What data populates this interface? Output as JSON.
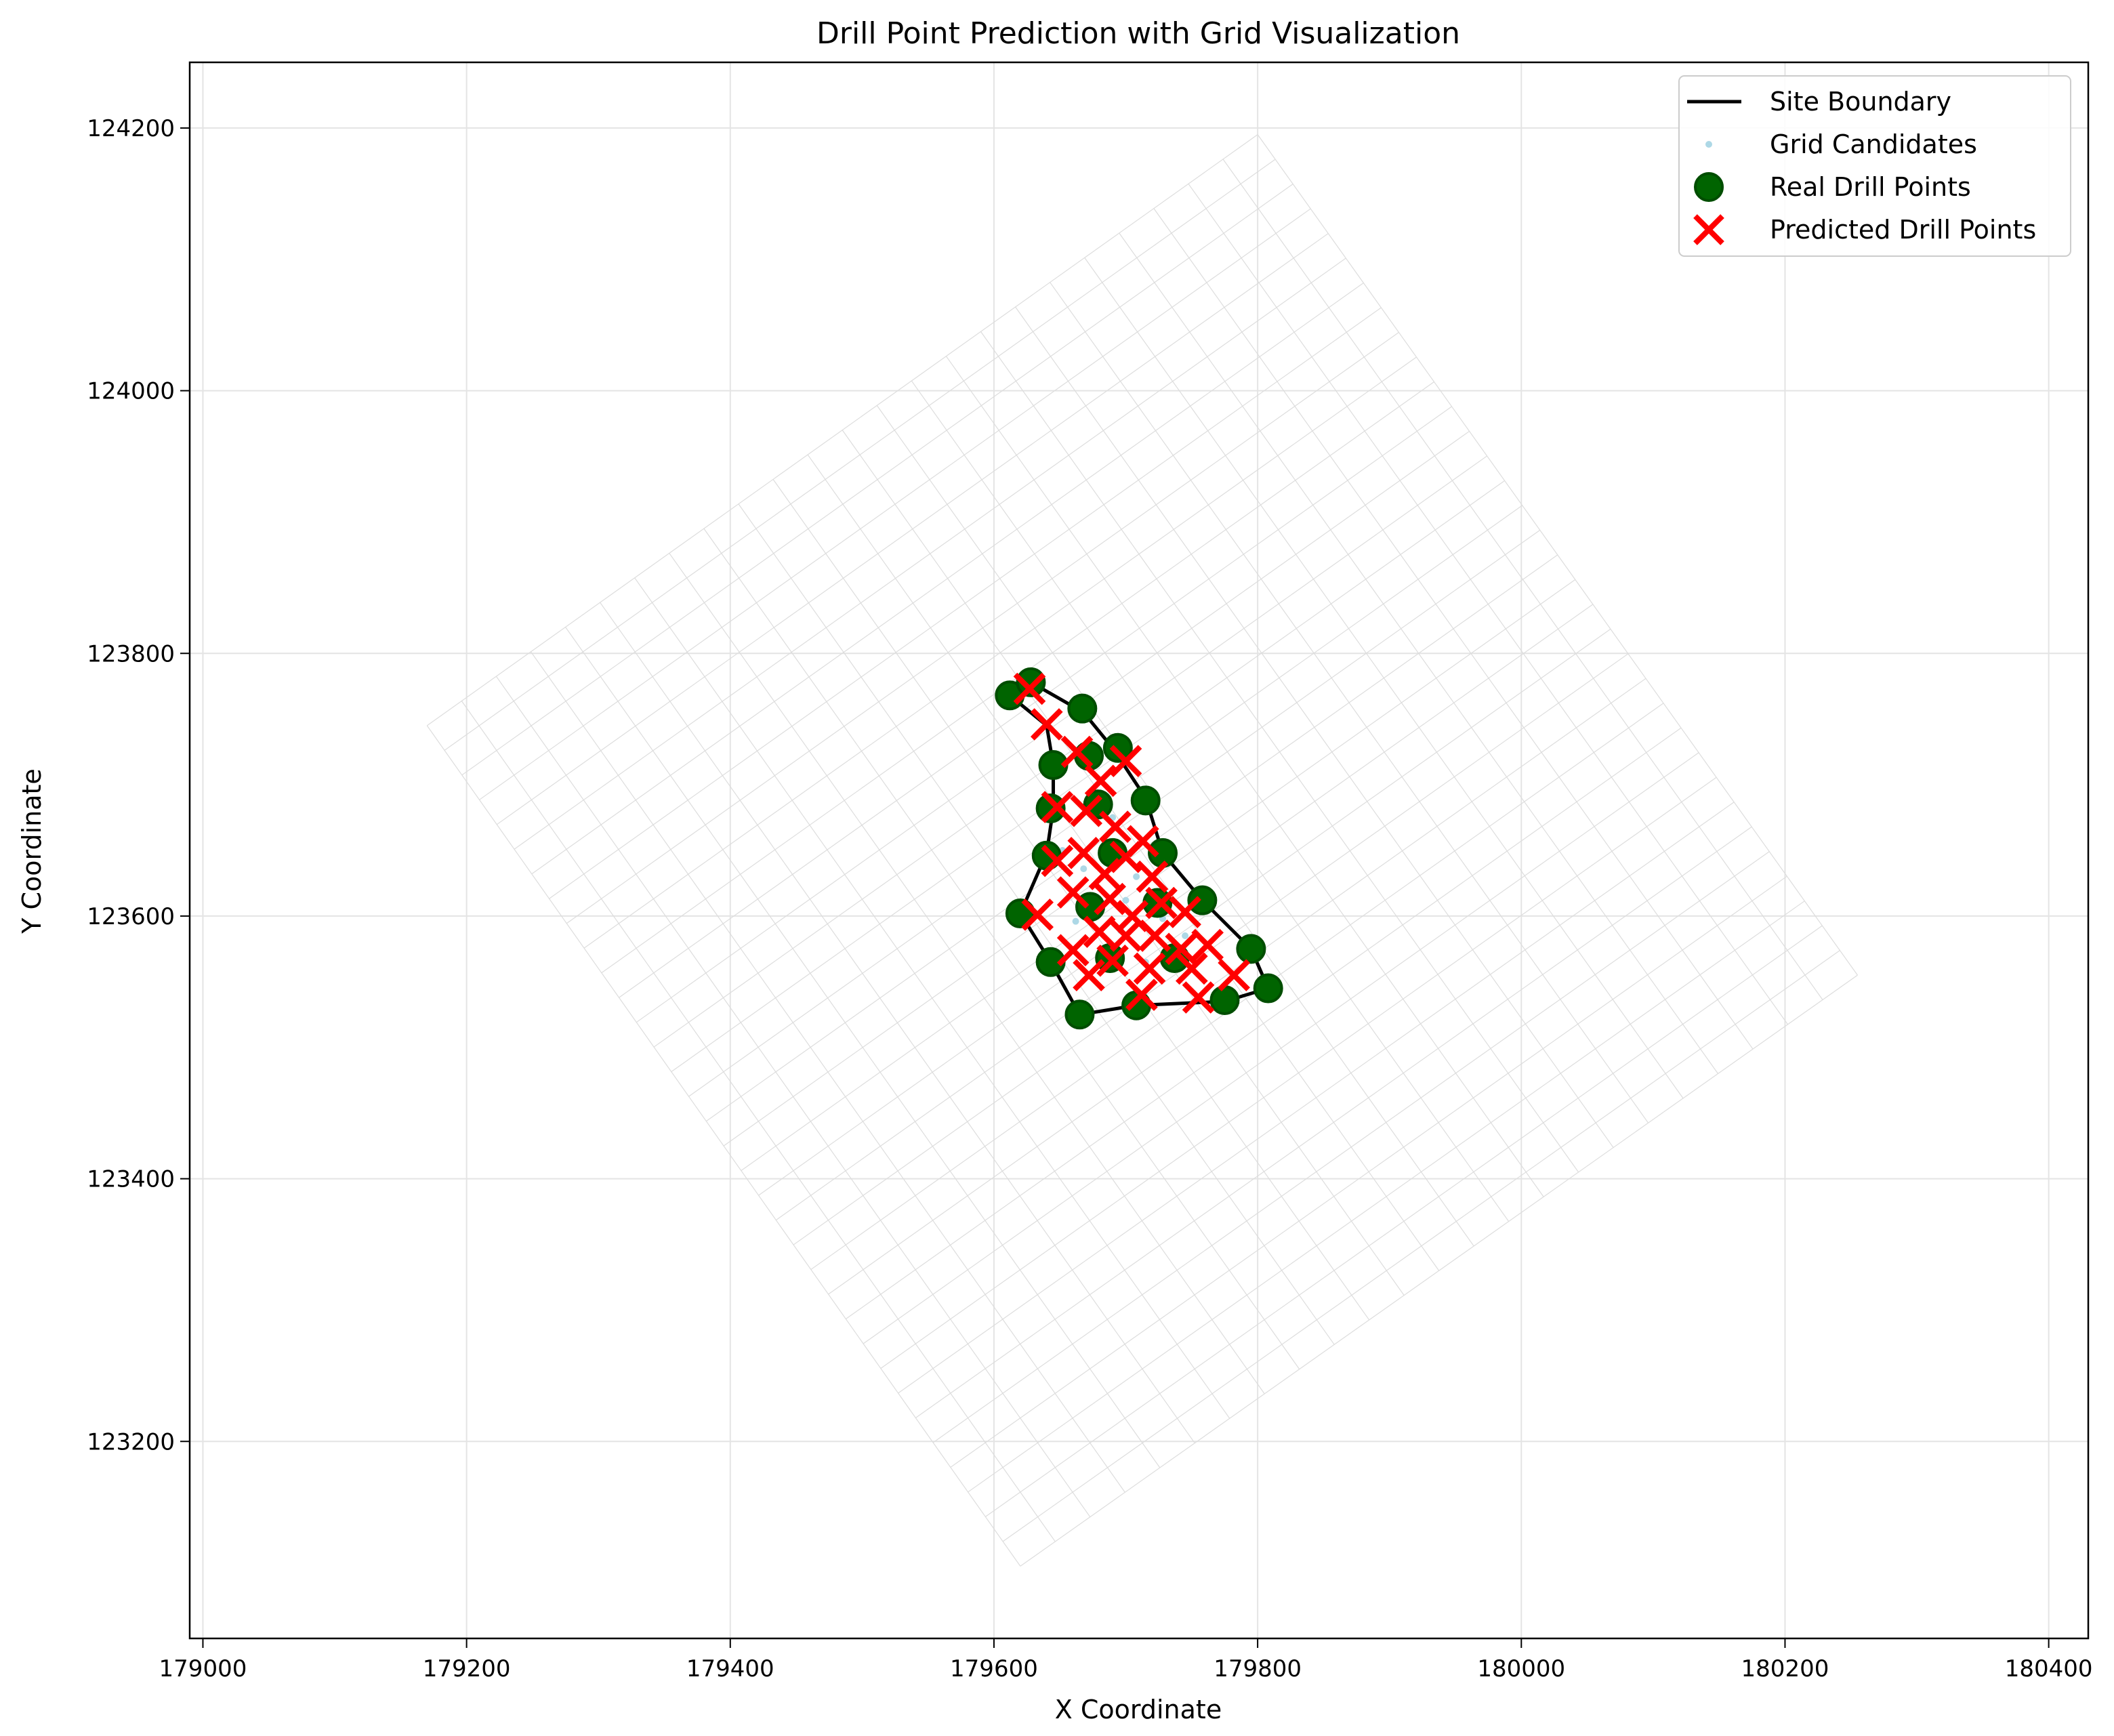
{
  "chart_data": {
    "type": "scatter",
    "title": "Drill Point Prediction with Grid Visualization",
    "xlabel": "X Coordinate",
    "ylabel": "Y Coordinate",
    "xlim": [
      178990,
      180430
    ],
    "ylim": [
      123050,
      124250
    ],
    "xticks": [
      179000,
      179200,
      179400,
      179600,
      179800,
      180000,
      180200,
      180400
    ],
    "yticks": [
      123200,
      123400,
      123600,
      123800,
      124000,
      124200
    ],
    "grid": true,
    "legend_position": "top-right",
    "legend": [
      {
        "label": "Site Boundary",
        "marker": "line",
        "color": "#000000"
      },
      {
        "label": "Grid Candidates",
        "marker": "small-dot",
        "color": "#add8e6"
      },
      {
        "label": "Real Drill Points",
        "marker": "circle",
        "color": "#006400"
      },
      {
        "label": "Predicted Drill Points",
        "marker": "x",
        "color": "#ff0000"
      }
    ],
    "background_grid": {
      "corners": [
        [
          179170,
          123745
        ],
        [
          179800,
          124195
        ],
        [
          180255,
          123555
        ],
        [
          179620,
          123105
        ]
      ],
      "divisions_u": 34,
      "divisions_v": 24,
      "color": "#dddddd"
    },
    "site_boundary": [
      [
        179628,
        123778
      ],
      [
        179668,
        123755
      ],
      [
        179690,
        123728
      ],
      [
        179715,
        123690
      ],
      [
        179728,
        123648
      ],
      [
        179758,
        123612
      ],
      [
        179795,
        123575
      ],
      [
        179808,
        123545
      ],
      [
        179775,
        123535
      ],
      [
        179708,
        123532
      ],
      [
        179665,
        123525
      ],
      [
        179643,
        123565
      ],
      [
        179620,
        123602
      ],
      [
        179640,
        123648
      ],
      [
        179645,
        123682
      ],
      [
        179645,
        123715
      ],
      [
        179640,
        123745
      ],
      [
        179612,
        123768
      ],
      [
        179628,
        123778
      ]
    ],
    "series": [
      {
        "name": "Grid Candidates",
        "points": [
          [
            179662,
            123596
          ],
          [
            179696,
            123589
          ],
          [
            179715,
            123565
          ],
          [
            179708,
            123630
          ],
          [
            179668,
            123636
          ],
          [
            179690,
            123675
          ],
          [
            179728,
            123598
          ],
          [
            179680,
            123563
          ],
          [
            179745,
            123585
          ],
          [
            179652,
            123650
          ],
          [
            179700,
            123612
          ]
        ]
      },
      {
        "name": "Real Drill Points",
        "points": [
          [
            179612,
            123768
          ],
          [
            179628,
            123778
          ],
          [
            179667,
            123758
          ],
          [
            179694,
            123728
          ],
          [
            179672,
            123722
          ],
          [
            179645,
            123715
          ],
          [
            179715,
            123688
          ],
          [
            179679,
            123685
          ],
          [
            179643,
            123682
          ],
          [
            179728,
            123648
          ],
          [
            179690,
            123648
          ],
          [
            179640,
            123646
          ],
          [
            179758,
            123612
          ],
          [
            179724,
            123610
          ],
          [
            179673,
            123607
          ],
          [
            179620,
            123602
          ],
          [
            179795,
            123575
          ],
          [
            179737,
            123568
          ],
          [
            179688,
            123568
          ],
          [
            179643,
            123565
          ],
          [
            179808,
            123545
          ],
          [
            179775,
            123536
          ],
          [
            179708,
            123532
          ],
          [
            179665,
            123525
          ]
        ]
      },
      {
        "name": "Predicted Drill Points",
        "points": [
          [
            179627,
            123773
          ],
          [
            179640,
            123746
          ],
          [
            179663,
            123725
          ],
          [
            179681,
            123703
          ],
          [
            179700,
            123718
          ],
          [
            179648,
            123683
          ],
          [
            179670,
            123680
          ],
          [
            179692,
            123668
          ],
          [
            179713,
            123657
          ],
          [
            179648,
            123642
          ],
          [
            179668,
            123648
          ],
          [
            179684,
            123632
          ],
          [
            179700,
            123645
          ],
          [
            179720,
            123630
          ],
          [
            179633,
            123601
          ],
          [
            179660,
            123618
          ],
          [
            179688,
            123613
          ],
          [
            179705,
            123600
          ],
          [
            179727,
            123610
          ],
          [
            179745,
            123603
          ],
          [
            179660,
            123574
          ],
          [
            179680,
            123588
          ],
          [
            179700,
            123585
          ],
          [
            179722,
            123585
          ],
          [
            179742,
            123575
          ],
          [
            179762,
            123578
          ],
          [
            179672,
            123555
          ],
          [
            179690,
            123566
          ],
          [
            179718,
            123560
          ],
          [
            179750,
            123560
          ],
          [
            179782,
            123555
          ],
          [
            179712,
            123540
          ],
          [
            179755,
            123538
          ]
        ]
      }
    ]
  }
}
